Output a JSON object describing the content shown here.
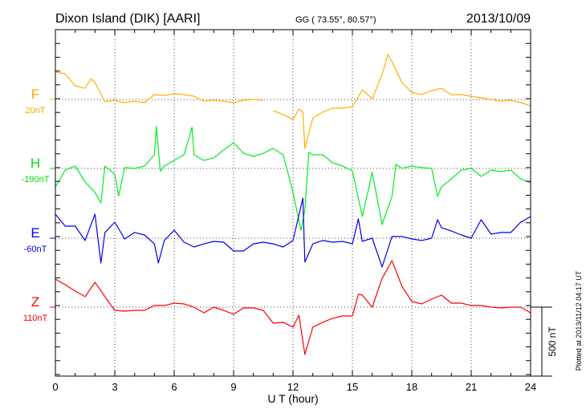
{
  "chart_data": {
    "type": "line",
    "title": "Dixon Island (DIK)  [AARI]",
    "coords": "GG ( 73.55°,  80.57°)",
    "date": "2013/10/09",
    "xlabel": "U T (hour)",
    "xlim": [
      0,
      24
    ],
    "xticks": [
      "0",
      "3",
      "6",
      "9",
      "12",
      "15",
      "18",
      "21",
      "24"
    ],
    "scale_bar": "500 nT",
    "plotted_note": "Plotted at 2013/11/12 04:17 UT",
    "grid": "dotted every 3 hours and at each component baseline",
    "value_units": "nT offset from component baseline",
    "series": [
      {
        "name": "F",
        "baseline_label": "20nT",
        "color": "#ffb000",
        "label_color": "#f5a800",
        "segments": [
          [
            [
              0,
              198
            ],
            [
              0.5,
              186
            ],
            [
              1,
              99
            ],
            [
              1.5,
              81
            ],
            [
              1.8,
              150
            ],
            [
              2,
              122
            ],
            [
              2.5,
              -17
            ],
            [
              3,
              -6
            ],
            [
              3.5,
              -23
            ],
            [
              4,
              -12
            ],
            [
              4.5,
              -23
            ],
            [
              5,
              35
            ],
            [
              5.5,
              29
            ],
            [
              6,
              41
            ],
            [
              6.5,
              35
            ],
            [
              7,
              23
            ],
            [
              7.5,
              -12
            ],
            [
              8,
              -6
            ],
            [
              8.5,
              -12
            ],
            [
              9,
              -23
            ],
            [
              9.5,
              -6
            ],
            [
              10,
              0
            ],
            [
              10.5,
              -6
            ]
          ],
          [
            [
              11,
              -81
            ],
            [
              11.5,
              -110
            ],
            [
              12,
              -145
            ],
            [
              12.3,
              -70
            ],
            [
              12.5,
              -93
            ],
            [
              12.6,
              -355
            ],
            [
              13,
              -134
            ],
            [
              13.5,
              -93
            ],
            [
              14,
              -64
            ],
            [
              14.5,
              -64
            ],
            [
              15,
              -52
            ],
            [
              15.5,
              70
            ],
            [
              16,
              6
            ],
            [
              16.5,
              180
            ],
            [
              16.8,
              325
            ],
            [
              17,
              273
            ],
            [
              17.5,
              122
            ],
            [
              18,
              52
            ],
            [
              18.5,
              35
            ],
            [
              19,
              64
            ],
            [
              19.5,
              81
            ],
            [
              20,
              35
            ],
            [
              20.5,
              35
            ],
            [
              21,
              23
            ],
            [
              21.5,
              12
            ],
            [
              22,
              0
            ],
            [
              22.5,
              -12
            ],
            [
              23,
              -6
            ],
            [
              23.5,
              -23
            ],
            [
              24,
              -46
            ]
          ]
        ]
      },
      {
        "name": "H",
        "baseline_label": "-190nT",
        "color": "#00ee22",
        "label_color": "#00dd00",
        "segments": [
          [
            [
              0,
              -134
            ],
            [
              0.5,
              -12
            ],
            [
              1,
              17
            ],
            [
              1.5,
              -99
            ],
            [
              2,
              -174
            ],
            [
              2.3,
              -250
            ],
            [
              2.5,
              17
            ],
            [
              3,
              -41
            ],
            [
              3.2,
              -200
            ],
            [
              3.5,
              6
            ],
            [
              4,
              0
            ],
            [
              4.5,
              17
            ],
            [
              5,
              99
            ],
            [
              5.1,
              305
            ],
            [
              5.3,
              -20
            ],
            [
              5.5,
              17
            ],
            [
              6,
              58
            ],
            [
              6.5,
              99
            ],
            [
              6.9,
              298
            ],
            [
              7,
              99
            ],
            [
              7.5,
              58
            ],
            [
              8,
              76
            ],
            [
              8.5,
              134
            ],
            [
              9,
              186
            ],
            [
              9.5,
              110
            ],
            [
              10,
              87
            ],
            [
              10.5,
              110
            ],
            [
              11,
              145
            ],
            [
              11.5,
              99
            ],
            [
              12,
              -174
            ],
            [
              12.4,
              -450
            ],
            [
              12.6,
              -300
            ],
            [
              12.8,
              116
            ],
            [
              13,
              99
            ],
            [
              13.5,
              99
            ],
            [
              14,
              41
            ],
            [
              14.5,
              17
            ],
            [
              15,
              -17
            ],
            [
              15.5,
              -349
            ],
            [
              16,
              -29
            ],
            [
              16.5,
              -407
            ],
            [
              17,
              -203
            ],
            [
              17.2,
              29
            ],
            [
              17.5,
              0
            ],
            [
              18,
              17
            ],
            [
              18.5,
              6
            ],
            [
              19,
              0
            ],
            [
              19.3,
              -203
            ],
            [
              19.5,
              -134
            ],
            [
              20,
              -76
            ],
            [
              20.5,
              -12
            ],
            [
              21,
              0
            ],
            [
              21.5,
              -58
            ],
            [
              22,
              -12
            ],
            [
              22.5,
              -23
            ],
            [
              23,
              -12
            ],
            [
              23.5,
              -76
            ],
            [
              24,
              -104
            ]
          ]
        ]
      },
      {
        "name": "E",
        "baseline_label": "-60nT",
        "color": "#0000ee",
        "label_color": "#0000ee",
        "segments": [
          [
            [
              0,
              174
            ],
            [
              0.5,
              87
            ],
            [
              1,
              87
            ],
            [
              1.5,
              -17
            ],
            [
              2,
              174
            ],
            [
              2.3,
              -180
            ],
            [
              2.5,
              41
            ],
            [
              3,
              116
            ],
            [
              3.5,
              -6
            ],
            [
              4,
              41
            ],
            [
              4.5,
              23
            ],
            [
              5,
              -41
            ],
            [
              5.2,
              -180
            ],
            [
              5.5,
              -17
            ],
            [
              6,
              58
            ],
            [
              6.5,
              -29
            ],
            [
              7,
              -64
            ],
            [
              7.5,
              -41
            ],
            [
              8,
              -23
            ],
            [
              8.5,
              -29
            ],
            [
              9,
              -93
            ],
            [
              9.5,
              -93
            ],
            [
              10,
              -41
            ],
            [
              10.5,
              -29
            ],
            [
              11,
              -41
            ],
            [
              11.5,
              -64
            ],
            [
              12,
              -17
            ],
            [
              12.5,
              290
            ],
            [
              12.6,
              -174
            ],
            [
              13,
              -41
            ],
            [
              13.5,
              -17
            ],
            [
              14,
              -29
            ],
            [
              14.5,
              -23
            ],
            [
              15,
              -41
            ],
            [
              15.3,
              140
            ],
            [
              15.5,
              -23
            ],
            [
              16,
              0
            ],
            [
              16.5,
              -209
            ],
            [
              17,
              12
            ],
            [
              17.5,
              12
            ],
            [
              18,
              -6
            ],
            [
              18.5,
              -17
            ],
            [
              19,
              0
            ],
            [
              19.3,
              134
            ],
            [
              19.5,
              76
            ],
            [
              20,
              52
            ],
            [
              20.5,
              23
            ],
            [
              21,
              0
            ],
            [
              21.5,
              134
            ],
            [
              22,
              29
            ],
            [
              22.5,
              41
            ],
            [
              23,
              41
            ],
            [
              23.5,
              116
            ],
            [
              24,
              157
            ]
          ]
        ]
      },
      {
        "name": "Z",
        "baseline_label": "110nT",
        "color": "#ff0000",
        "label_color": "#ff0000",
        "segments": [
          [
            [
              0,
              203
            ],
            [
              0.5,
              163
            ],
            [
              1,
              116
            ],
            [
              1.5,
              76
            ],
            [
              2,
              180
            ],
            [
              2.5,
              76
            ],
            [
              3,
              -23
            ],
            [
              3.5,
              -29
            ],
            [
              4,
              -23
            ],
            [
              4.5,
              -23
            ],
            [
              5,
              12
            ],
            [
              5.5,
              12
            ],
            [
              6,
              29
            ],
            [
              6.5,
              23
            ],
            [
              7,
              0
            ],
            [
              7.5,
              -41
            ],
            [
              8,
              0
            ],
            [
              8.5,
              -23
            ],
            [
              9,
              -52
            ],
            [
              9.5,
              -6
            ],
            [
              10,
              -6
            ],
            [
              10.5,
              -23
            ],
            [
              11,
              -116
            ],
            [
              11.5,
              -110
            ],
            [
              12,
              -145
            ],
            [
              12.3,
              -58
            ],
            [
              12.6,
              -343
            ],
            [
              13,
              -145
            ],
            [
              13.5,
              -110
            ],
            [
              14,
              -81
            ],
            [
              14.5,
              -64
            ],
            [
              15,
              -64
            ],
            [
              15.3,
              93
            ],
            [
              15.5,
              87
            ],
            [
              16,
              0
            ],
            [
              16.5,
              209
            ],
            [
              17,
              337
            ],
            [
              17.5,
              151
            ],
            [
              18,
              41
            ],
            [
              18.5,
              23
            ],
            [
              19,
              58
            ],
            [
              19.5,
              87
            ],
            [
              20,
              29
            ],
            [
              20.5,
              29
            ],
            [
              21,
              12
            ],
            [
              21.5,
              12
            ],
            [
              22,
              0
            ],
            [
              22.5,
              -6
            ],
            [
              23,
              0
            ],
            [
              23.5,
              0
            ],
            [
              24,
              -41
            ]
          ]
        ]
      }
    ]
  }
}
